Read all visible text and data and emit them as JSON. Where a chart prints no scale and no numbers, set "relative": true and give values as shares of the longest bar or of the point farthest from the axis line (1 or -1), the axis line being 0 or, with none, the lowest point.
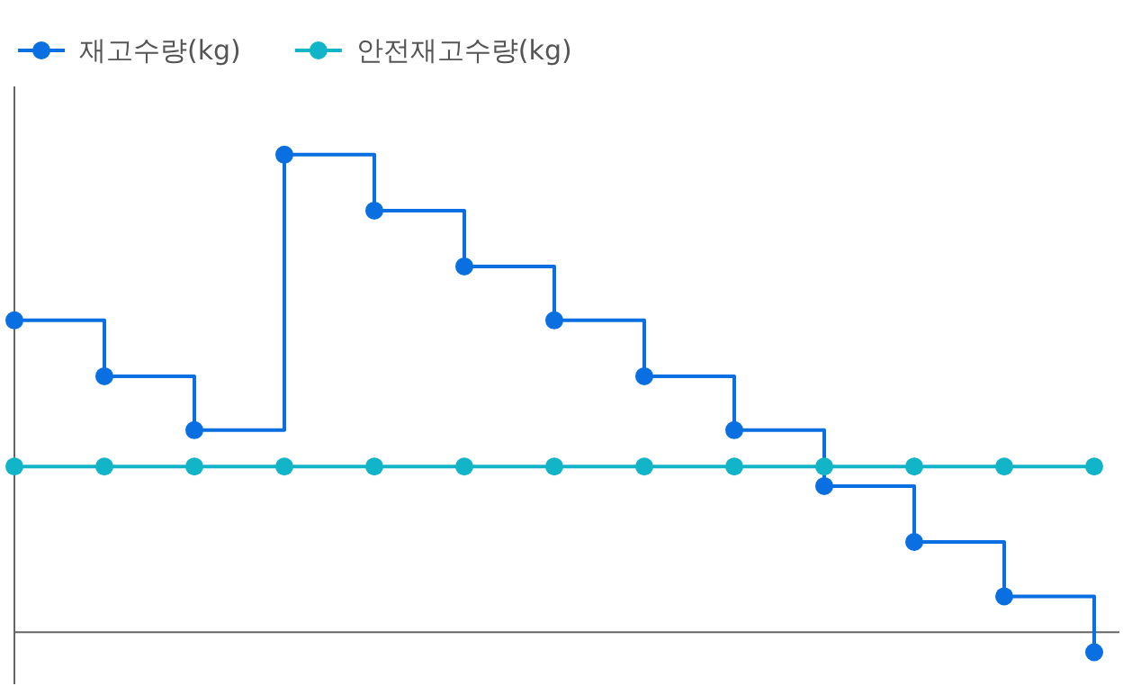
{
  "chart_data": {
    "type": "step",
    "relative": true,
    "legend": "top left",
    "marker": "circle",
    "categories": [
      null,
      null,
      null,
      null,
      null,
      null,
      null,
      null,
      null,
      null,
      null,
      null,
      null
    ],
    "series": [
      {
        "name": "재고수량(kg)",
        "color": "#0a6fe0",
        "values": [
          0.653,
          0.536,
          0.423,
          1,
          0.883,
          0.766,
          0.653,
          0.536,
          0.423,
          0.306,
          0.189,
          0.075,
          -0.042
        ]
      },
      {
        "name": "안전재고수량(kg)",
        "type": "line",
        "color": "#12b5c8",
        "values": [
          0.347,
          0.347,
          0.347,
          0.347,
          0.347,
          0.347,
          0.347,
          0.347,
          0.347,
          0.347,
          0.347,
          0.347,
          0.347
        ]
      }
    ]
  }
}
